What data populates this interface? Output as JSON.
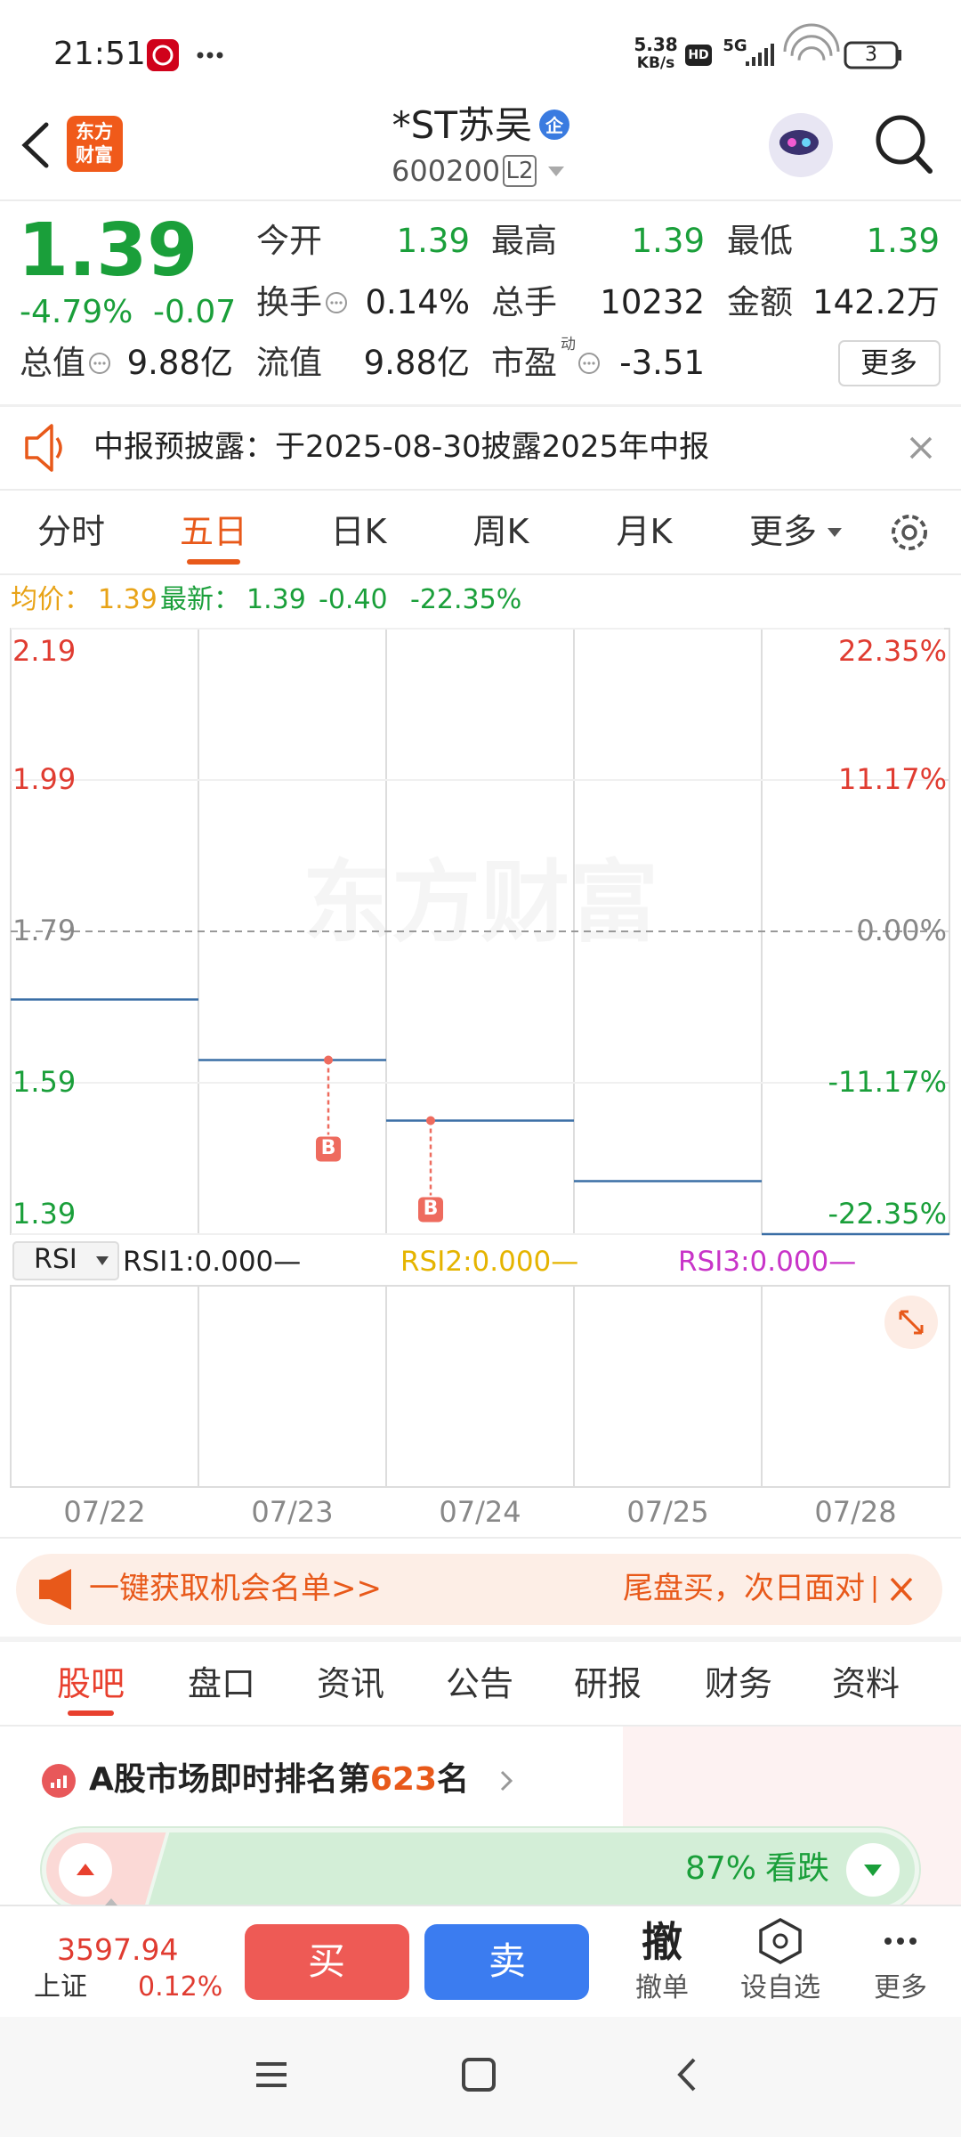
{
  "status_bar": {
    "time": "21:51",
    "net_speed": "5.38",
    "net_unit": "KB/s",
    "hd": "HD",
    "network": "5G",
    "battery": "3"
  },
  "header": {
    "logo_lines": [
      "东方",
      "财富"
    ],
    "title": "*ST苏吴",
    "badge": "企",
    "code": "600200",
    "level": "L2"
  },
  "quote": {
    "price": "1.39",
    "change_pct": "-4.79%",
    "change": "-0.07",
    "stats": [
      {
        "label": "今开",
        "value": "1.39"
      },
      {
        "label": "最高",
        "value": "1.39"
      },
      {
        "label": "最低",
        "value": "1.39"
      },
      {
        "label": "换手",
        "value": "0.14%"
      },
      {
        "label": "总手",
        "value": "10232"
      },
      {
        "label": "金额",
        "value": "142.2万"
      },
      {
        "label": "总值",
        "value": "9.88亿"
      },
      {
        "label": "流值",
        "value": "9.88亿"
      },
      {
        "label": "市盈",
        "sup": "动",
        "value": "-3.51"
      }
    ],
    "more": "更多"
  },
  "notice": "中报预披露：于2025-08-30披露2025年中报",
  "chart_tabs": {
    "items": [
      "分时",
      "五日",
      "日K",
      "周K",
      "月K",
      "更多"
    ],
    "active": 1
  },
  "chart_info": {
    "avg_label": "均价：",
    "avg": "1.39",
    "last_label": "最新：",
    "last": "1.39",
    "change": "-0.40",
    "change_pct": "-22.35%"
  },
  "chart_data": {
    "type": "line",
    "watermark": "东方财富",
    "x": [
      "07/22",
      "07/23",
      "07/24",
      "07/25",
      "07/28"
    ],
    "series": [
      {
        "color": "#3a6ea5",
        "values": [
          1.7,
          1.62,
          1.54,
          1.46,
          1.39
        ]
      }
    ],
    "ylim": [
      1.39,
      2.19
    ],
    "yticks": [
      2.19,
      1.99,
      1.79,
      1.59,
      1.39
    ],
    "y2lim": [
      -22.35,
      22.35
    ],
    "y2ticks": [
      {
        "value": 22.35,
        "label": "22.35%"
      },
      {
        "value": 11.17,
        "label": "11.17%"
      },
      {
        "value": 0,
        "label": "0.00%"
      },
      {
        "value": -11.17,
        "label": "-11.17%"
      },
      {
        "value": -22.35,
        "label": "-22.35%"
      }
    ],
    "reference": 1.79,
    "grid": true,
    "trade_markers": [
      {
        "x": "07/23",
        "label": "B"
      },
      {
        "x": "07/24",
        "label": "B"
      }
    ]
  },
  "indicator": {
    "name": "RSI",
    "lines": [
      {
        "text": "RSI1:0.000—",
        "color": "#222222"
      },
      {
        "text": "RSI2:0.000—",
        "color": "#e5b400"
      },
      {
        "text": "RSI3:0.000—",
        "color": "#c834c8"
      }
    ]
  },
  "promo": {
    "left": "一键获取机会名单>>",
    "right": "尾盘买，次日面对"
  },
  "bottom_tabs": {
    "items": [
      "股吧",
      "盘口",
      "资讯",
      "公告",
      "研报",
      "财务",
      "资料"
    ],
    "active": 0
  },
  "rank": {
    "prefix": "A股市场即时排名第",
    "number": "623",
    "suffix": "名"
  },
  "sentiment": {
    "value": 87,
    "value_label": "87%",
    "label": "看跌"
  },
  "bottom_bar": {
    "index_value": "3597.94",
    "index_name": "上证",
    "index_change": "0.12%",
    "buy": "买",
    "sell": "卖",
    "cancel_icon": "撤",
    "cancel": "撤单",
    "watchlist": "设自选",
    "more": "更多"
  }
}
